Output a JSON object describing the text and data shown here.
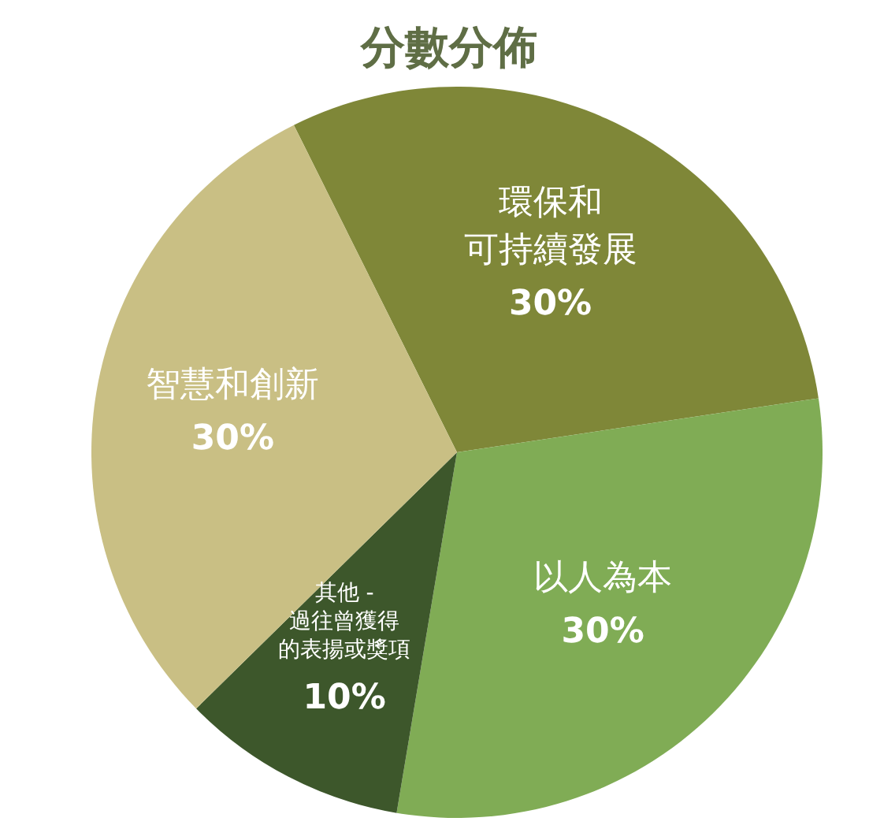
{
  "chart_data": {
    "type": "pie",
    "title": "分數分佈",
    "categories": [
      "環保和可持續發展",
      "以人為本",
      "其他 - 過往曾獲得的表揚或獎項",
      "智慧和創新"
    ],
    "values": [
      30,
      30,
      10,
      30
    ],
    "value_labels": [
      "30%",
      "30%",
      "10%",
      "30%"
    ],
    "colors": [
      "#7f8738",
      "#80ac55",
      "#3d572b",
      "#c9bf84"
    ]
  }
}
